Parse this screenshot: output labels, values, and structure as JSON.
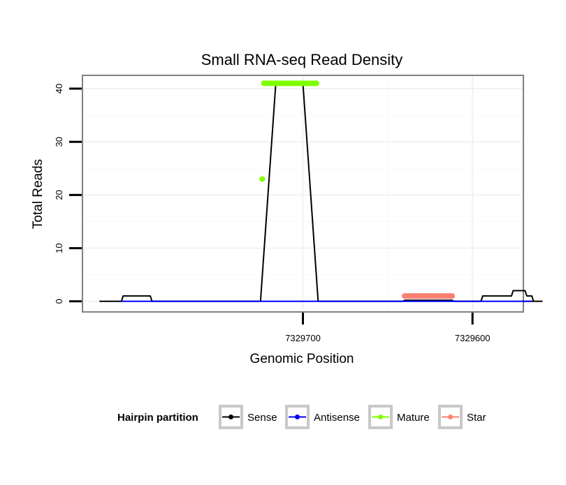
{
  "chart_data": {
    "type": "line",
    "title": "Small RNA-seq Read Density",
    "xlabel": "Genomic Position",
    "ylabel": "Total Reads",
    "x_reversed": true,
    "xlim": [
      7329830,
      7329570
    ],
    "ylim": [
      -2,
      42.5
    ],
    "x_ticks": [
      {
        "value": 7329700,
        "label": "7329700"
      },
      {
        "value": 7329600,
        "label": "7329600"
      }
    ],
    "y_ticks": [
      {
        "value": 0,
        "label": "0"
      },
      {
        "value": 10,
        "label": "10"
      },
      {
        "value": 20,
        "label": "20"
      },
      {
        "value": 30,
        "label": "30"
      },
      {
        "value": 40,
        "label": "40"
      }
    ],
    "grid": true,
    "legend": {
      "title": "Hairpin partition",
      "position": "bottom",
      "entries": [
        {
          "name": "Sense",
          "color": "#000000"
        },
        {
          "name": "Antisense",
          "color": "#0000ff"
        },
        {
          "name": "Mature",
          "color": "#7fff00"
        },
        {
          "name": "Star",
          "color": "#fa8072"
        }
      ]
    },
    "series": [
      {
        "name": "Sense",
        "color": "#000000",
        "style": "line",
        "x": [
          7329820,
          7329807,
          7329806,
          7329790,
          7329789,
          7329725,
          7329716,
          7329700,
          7329691,
          7329641,
          7329640,
          7329612,
          7329611,
          7329595,
          7329594,
          7329577,
          7329576,
          7329569,
          7329568,
          7329565,
          7329564,
          7329560,
          7329559,
          7329571
        ],
        "y": [
          0,
          0,
          1,
          1,
          0,
          0,
          41,
          41,
          0,
          0,
          0.2,
          0.2,
          0,
          0,
          1,
          1,
          2,
          2,
          1,
          1,
          0,
          0,
          0,
          0
        ]
      },
      {
        "name": "Antisense",
        "color": "#0000ff",
        "style": "line",
        "x": [
          7329807,
          7329790,
          7329725,
          7329691,
          7329640,
          7329612,
          7329576,
          7329565
        ],
        "y": [
          0,
          0,
          0,
          0,
          0,
          0,
          0,
          0
        ]
      },
      {
        "name": "Mature",
        "color": "#7fff00",
        "style": "points",
        "x": [
          7329724,
          7329723,
          7329722,
          7329721,
          7329720,
          7329719,
          7329718,
          7329717,
          7329716,
          7329715,
          7329714,
          7329713,
          7329712,
          7329711,
          7329710,
          7329709,
          7329708,
          7329707,
          7329706,
          7329705,
          7329704,
          7329703,
          7329702,
          7329701,
          7329700,
          7329699,
          7329698,
          7329697,
          7329696,
          7329695,
          7329694,
          7329693,
          7329692
        ],
        "y": [
          23,
          41,
          41,
          41,
          41,
          41,
          41,
          41,
          41,
          41,
          41,
          41,
          41,
          41,
          41,
          41,
          41,
          41,
          41,
          41,
          41,
          41,
          41,
          41,
          41,
          41,
          41,
          41,
          41,
          41,
          41,
          41,
          41
        ]
      },
      {
        "name": "Star",
        "color": "#fa8072",
        "style": "points",
        "x": [
          7329640,
          7329639,
          7329638,
          7329637,
          7329636,
          7329635,
          7329634,
          7329633,
          7329632,
          7329631,
          7329630,
          7329629,
          7329628,
          7329627,
          7329626,
          7329625,
          7329624,
          7329623,
          7329622,
          7329621,
          7329620,
          7329619,
          7329618,
          7329617,
          7329616,
          7329615,
          7329614,
          7329613,
          7329612
        ],
        "y": [
          1,
          1,
          1,
          1,
          1,
          1,
          1,
          1,
          1,
          1,
          1,
          1,
          1,
          1,
          1,
          1,
          1,
          1,
          1,
          1,
          1,
          1,
          1,
          1,
          1,
          1,
          1,
          1,
          1
        ]
      }
    ]
  }
}
